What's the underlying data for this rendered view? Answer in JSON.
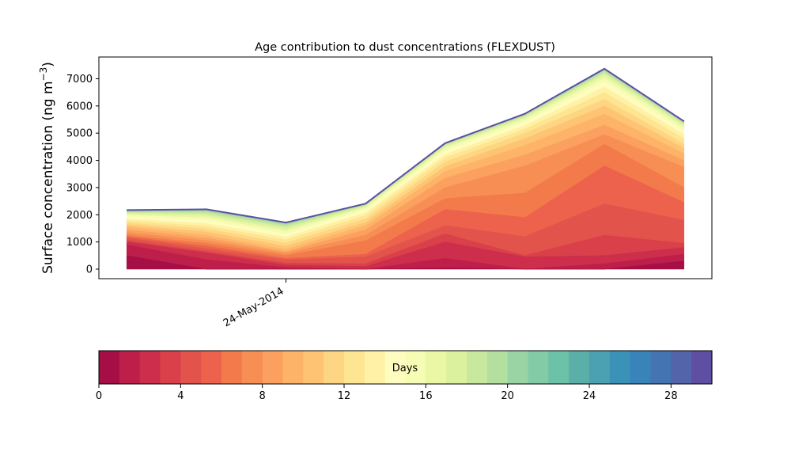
{
  "chart_data": {
    "type": "area",
    "title": "Age contribution to dust concentrations (FLEXDUST)",
    "ylabel_main": "Surface concentration (ng m",
    "ylabel_sup": "−3",
    "ylabel_close": ")",
    "ylim": [
      -350,
      7800
    ],
    "yticks": [
      0,
      1000,
      2000,
      3000,
      4000,
      5000,
      6000,
      7000
    ],
    "x_tick": {
      "label": "24-May-2014",
      "position": 2
    },
    "x": [
      0,
      1,
      2,
      3,
      4,
      5,
      6,
      7
    ],
    "xlim": [
      -0.35,
      7.35
    ],
    "cumulative_totals": [
      [
        500,
        0,
        0,
        0,
        50,
        0,
        0,
        300
      ],
      [
        900,
        350,
        60,
        0,
        400,
        0,
        200,
        550
      ],
      [
        1000,
        600,
        150,
        100,
        1000,
        450,
        500,
        800
      ],
      [
        1050,
        650,
        220,
        200,
        1300,
        500,
        1250,
        950
      ],
      [
        1150,
        750,
        350,
        450,
        1600,
        1200,
        2400,
        1800
      ],
      [
        1200,
        850,
        400,
        550,
        2200,
        1900,
        3800,
        2450
      ],
      [
        1250,
        950,
        500,
        1050,
        2600,
        2800,
        4600,
        3000
      ],
      [
        1350,
        1050,
        580,
        1250,
        3000,
        3800,
        4950,
        3750
      ],
      [
        1450,
        1150,
        640,
        1450,
        3350,
        4200,
        5300,
        4000
      ],
      [
        1550,
        1250,
        720,
        1600,
        3600,
        4550,
        5700,
        4250
      ],
      [
        1620,
        1370,
        840,
        1720,
        3780,
        4800,
        6000,
        4450
      ],
      [
        1700,
        1480,
        960,
        1850,
        3950,
        5000,
        6250,
        4600
      ],
      [
        1780,
        1580,
        1080,
        1980,
        4100,
        5150,
        6500,
        4800
      ],
      [
        1850,
        1680,
        1180,
        2080,
        4220,
        5280,
        6700,
        4950
      ],
      [
        1920,
        1780,
        1280,
        2170,
        4340,
        5400,
        6880,
        5080
      ],
      [
        1980,
        1880,
        1380,
        2240,
        4430,
        5490,
        7010,
        5180
      ],
      [
        2030,
        1960,
        1460,
        2290,
        4500,
        5560,
        7120,
        5260
      ],
      [
        2070,
        2030,
        1540,
        2330,
        4550,
        5610,
        7200,
        5320
      ],
      [
        2100,
        2090,
        1600,
        2360,
        4580,
        5650,
        7260,
        5360
      ],
      [
        2125,
        2140,
        1650,
        2380,
        4600,
        5680,
        7310,
        5390
      ],
      [
        2145,
        2170,
        1680,
        2395,
        4615,
        5695,
        7340,
        5410
      ],
      [
        2160,
        2190,
        1700,
        2405,
        4625,
        5705,
        7360,
        5425
      ],
      [
        2170,
        2200,
        1715,
        2410,
        4632,
        5712,
        7370,
        5435
      ]
    ],
    "colorbar": {
      "label": "Days",
      "ticks": [
        0,
        4,
        8,
        12,
        16,
        20,
        24,
        28
      ],
      "range": [
        0,
        30
      ],
      "colors": [
        "#a50f45",
        "#be1e4a",
        "#cc2e4b",
        "#da4049",
        "#e1534b",
        "#ec624c",
        "#f37a4b",
        "#f78f55",
        "#fba05f",
        "#fdb468",
        "#fec373",
        "#fed683",
        "#fee592",
        "#fff1a5",
        "#fffcbf",
        "#f7fcb5",
        "#eaf7a5",
        "#dcf19d",
        "#c8e89d",
        "#b3df9f",
        "#9ad4a4",
        "#82cba6",
        "#6cc2a6",
        "#5aafa9",
        "#4ba0b1",
        "#3b92b9",
        "#3983bb",
        "#4574b2",
        "#5464ab",
        "#5e4fa2"
      ]
    },
    "grid": false,
    "legend": "colorbar-bottom"
  }
}
